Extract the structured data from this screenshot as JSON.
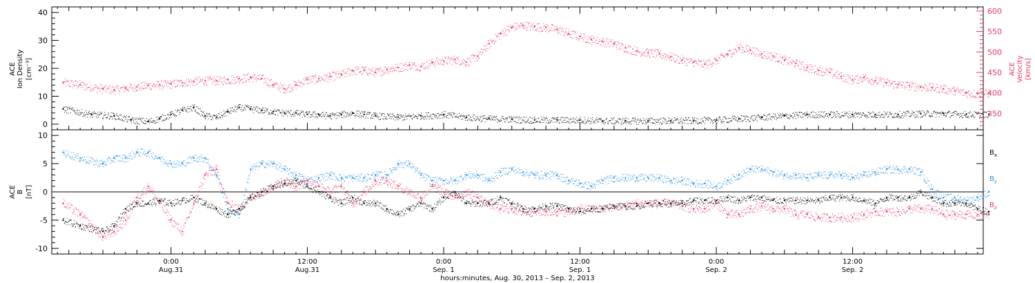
{
  "chart_data": [
    {
      "type": "scatter",
      "panel": "density-velocity",
      "left_axis_label": [
        "ACE",
        "Ion Density",
        "[cm⁻³]"
      ],
      "right_axis_label": [
        "ACE",
        "Velocity",
        "[km/s]"
      ],
      "left_ylim": [
        -2,
        42
      ],
      "left_ticks": [
        0,
        10,
        20,
        30,
        40
      ],
      "right_ylim": [
        310,
        610
      ],
      "right_ticks": [
        350,
        400,
        450,
        500,
        550,
        600
      ],
      "x_hours_range": [
        -4.5,
        77.5
      ],
      "series": [
        {
          "color": "#000000",
          "axis": "left",
          "x_hours": [
            -3.5,
            -1,
            1,
            2.5,
            4,
            5,
            6,
            7,
            8,
            9,
            10,
            11,
            12,
            13,
            14,
            15,
            16,
            17,
            18,
            19,
            20,
            21,
            22,
            23,
            24,
            26,
            28,
            30,
            32,
            34,
            36,
            38,
            40,
            42,
            44,
            46,
            48,
            50,
            52,
            54,
            56,
            58,
            60,
            62,
            64,
            66,
            68,
            70,
            72,
            74,
            76,
            78
          ],
          "values": [
            5.5,
            3.5,
            3,
            1.5,
            1,
            2,
            3.5,
            5,
            6,
            3,
            2.5,
            4.5,
            6,
            5.5,
            5,
            4.5,
            4,
            4,
            3.5,
            3.5,
            3,
            3.5,
            4,
            3.5,
            3,
            2.5,
            3,
            3.5,
            2.5,
            2,
            1.8,
            1.5,
            1.5,
            1.5,
            1.2,
            1.2,
            1.2,
            1.3,
            1.3,
            1.5,
            2,
            2.5,
            3,
            3.5,
            3.5,
            3.5,
            3.5,
            3.5,
            3.8,
            3.8,
            3.5,
            3.5
          ]
        },
        {
          "color": "#e8335d",
          "axis": "right",
          "x_hours": [
            -3.5,
            -2,
            0,
            1,
            2,
            3,
            4,
            5,
            6,
            7,
            8,
            9,
            10,
            11,
            12,
            13,
            14,
            15,
            16,
            17,
            18,
            19,
            20,
            21,
            22,
            23,
            24,
            25,
            26,
            27,
            28,
            29,
            30,
            31,
            32,
            33,
            34,
            35,
            36,
            37,
            38,
            39,
            40,
            41,
            42,
            43,
            44,
            45,
            46,
            47,
            48,
            49,
            50,
            51,
            52,
            53,
            54,
            55,
            56,
            57,
            58,
            59,
            60,
            61,
            62,
            63,
            64,
            65,
            66,
            67,
            68,
            69,
            70,
            71,
            72,
            73,
            74,
            75,
            76,
            77,
            78
          ],
          "values": [
            425,
            420,
            410,
            408,
            412,
            415,
            418,
            420,
            422,
            425,
            428,
            430,
            430,
            432,
            435,
            438,
            435,
            420,
            410,
            420,
            432,
            435,
            440,
            445,
            455,
            455,
            450,
            458,
            462,
            468,
            465,
            475,
            478,
            482,
            475,
            490,
            520,
            545,
            560,
            565,
            562,
            560,
            555,
            545,
            538,
            530,
            525,
            520,
            510,
            502,
            498,
            495,
            488,
            480,
            475,
            470,
            480,
            495,
            510,
            505,
            495,
            490,
            480,
            472,
            462,
            455,
            450,
            440,
            432,
            438,
            430,
            425,
            420,
            418,
            415,
            413,
            410,
            405,
            400,
            398,
            400
          ]
        }
      ]
    },
    {
      "type": "scatter",
      "panel": "magnetic-field",
      "left_axis_label": [
        "ACE",
        "B",
        "[nT]"
      ],
      "ylim": [
        -11,
        11
      ],
      "ticks": [
        -10,
        -5,
        0,
        5,
        10
      ],
      "zero_line": true,
      "x_hours_range": [
        -4.5,
        77.5
      ],
      "series": [
        {
          "name": "B",
          "sub": "x",
          "color": "#000000",
          "x_hours": [
            -3.5,
            -2,
            0,
            1,
            2,
            3,
            4,
            5,
            6,
            7,
            8,
            9,
            10,
            11,
            12,
            13,
            14,
            15,
            16,
            17,
            18,
            19,
            20,
            21,
            22,
            23,
            24,
            25,
            26,
            27,
            28,
            29,
            30,
            31,
            32,
            33,
            34,
            35,
            36,
            37,
            38,
            39,
            40,
            41,
            42,
            43,
            44,
            45,
            46,
            47,
            48,
            49,
            50,
            51,
            52,
            53,
            54,
            55,
            56,
            57,
            58,
            59,
            60,
            61,
            62,
            63,
            64,
            65,
            66,
            67,
            68,
            69,
            70,
            71,
            72,
            73,
            74,
            75,
            76,
            77,
            78
          ],
          "values": [
            -5,
            -6,
            -7,
            -6,
            -3,
            -2,
            -2,
            -1.5,
            -2,
            -1.5,
            -1,
            -2,
            -3,
            -4,
            -3,
            -1,
            0,
            1,
            1.5,
            2,
            1,
            0,
            -1,
            -2,
            -1,
            -2,
            -2,
            -3,
            -4,
            -3,
            -2,
            -3,
            -1,
            0,
            -2,
            -2,
            -2,
            -1,
            -2,
            -3,
            -3,
            -2.5,
            -2.5,
            -3,
            -3.5,
            -3,
            -3,
            -2.5,
            -2.5,
            -2.5,
            -2,
            -2,
            -2,
            -2,
            -1.5,
            -1.5,
            -1.5,
            -1,
            -1.5,
            -1,
            -1,
            -1.5,
            -1.5,
            -1.5,
            -1.5,
            -1.5,
            -1,
            -1,
            -1,
            -1.5,
            -2,
            -1,
            -1,
            -1,
            0,
            -1,
            -2,
            -2,
            -2,
            -3,
            -3.5
          ]
        },
        {
          "name": "B",
          "sub": "y",
          "color": "#1f8ce6",
          "x_hours": [
            -3.5,
            -2,
            0,
            1,
            2,
            3,
            4,
            5,
            6,
            7,
            8,
            9,
            10,
            11,
            12,
            13,
            14,
            15,
            16,
            17,
            18,
            19,
            20,
            21,
            22,
            23,
            24,
            25,
            26,
            27,
            28,
            29,
            30,
            31,
            32,
            33,
            34,
            35,
            36,
            37,
            38,
            39,
            40,
            41,
            42,
            43,
            44,
            45,
            46,
            47,
            48,
            49,
            50,
            51,
            52,
            53,
            54,
            55,
            56,
            57,
            58,
            59,
            60,
            61,
            62,
            63,
            64,
            65,
            66,
            67,
            68,
            69,
            70,
            71,
            72,
            73,
            74,
            75,
            76,
            77,
            78
          ],
          "values": [
            7,
            6,
            5,
            6,
            6,
            7,
            7,
            6,
            5,
            5,
            6,
            6,
            3,
            -3,
            -4,
            4,
            5,
            5,
            4,
            3,
            2,
            2.5,
            3,
            2.5,
            2.5,
            2.5,
            3,
            3,
            5,
            5,
            3,
            2,
            2,
            2,
            3,
            3,
            2,
            3.5,
            4,
            3.5,
            3,
            3,
            3,
            2,
            1.5,
            1,
            2,
            2.5,
            2.5,
            2.5,
            2.5,
            2.5,
            2,
            2,
            1.5,
            1.5,
            1,
            2,
            3,
            4,
            4,
            3.5,
            3,
            3,
            2.5,
            3,
            3,
            3,
            2.5,
            3,
            3.5,
            4,
            4,
            4,
            3.5,
            0.5,
            -1,
            -1,
            -1.5,
            -1,
            0
          ]
        },
        {
          "name": "B",
          "sub": "z",
          "color": "#e8335d",
          "x_hours": [
            -3.5,
            -2,
            0,
            1,
            2,
            3,
            4,
            5,
            6,
            7,
            8,
            9,
            10,
            11,
            12,
            13,
            14,
            15,
            16,
            17,
            18,
            19,
            20,
            21,
            22,
            23,
            24,
            25,
            26,
            27,
            28,
            29,
            30,
            31,
            32,
            33,
            34,
            35,
            36,
            37,
            38,
            39,
            40,
            41,
            42,
            43,
            44,
            45,
            46,
            47,
            48,
            49,
            50,
            51,
            52,
            53,
            54,
            55,
            56,
            57,
            58,
            59,
            60,
            61,
            62,
            63,
            64,
            65,
            66,
            67,
            68,
            69,
            70,
            71,
            72,
            73,
            74,
            75,
            76,
            77,
            78
          ],
          "values": [
            -2,
            -4,
            -8,
            -7,
            -5,
            -1,
            1,
            -2,
            -5,
            -7,
            -2,
            3,
            4,
            -2,
            -3,
            -1,
            0,
            1,
            2,
            1,
            2,
            1,
            0,
            1,
            -2,
            0,
            2,
            2,
            1,
            0,
            -1,
            1,
            0,
            -1,
            0,
            -1,
            -2,
            -3,
            -3,
            -3.5,
            -3.5,
            -3.5,
            -3.5,
            -3.5,
            -3,
            -3,
            -3,
            -2.5,
            -2.5,
            -2,
            -2,
            -2,
            -2,
            -2.5,
            -3,
            -3,
            -2,
            -4,
            -4,
            -3,
            -2.5,
            -3,
            -3,
            -4,
            -4,
            -4.5,
            -4.5,
            -4.5,
            -4.5,
            -4,
            -3.5,
            -3.5,
            -3.5,
            -3,
            -3,
            -3,
            -4,
            -4,
            -4,
            -4,
            -4
          ]
        }
      ]
    }
  ],
  "x_axis": {
    "ticks": [
      {
        "hours": 6,
        "line1": "0:00",
        "line2": "Aug.31"
      },
      {
        "hours": 18,
        "line1": "12:00",
        "line2": "Aug.31"
      },
      {
        "hours": 30,
        "line1": "0:00",
        "line2": "Sep. 1"
      },
      {
        "hours": 42,
        "line1": "12:00",
        "line2": "Sep. 1"
      },
      {
        "hours": 54,
        "line1": "0:00",
        "line2": "Sep. 2"
      },
      {
        "hours": 66,
        "line1": "12:00",
        "line2": "Sep. 2"
      }
    ],
    "caption": "hours:minutes, Aug. 30, 2013 – Sep. 2, 2013"
  }
}
